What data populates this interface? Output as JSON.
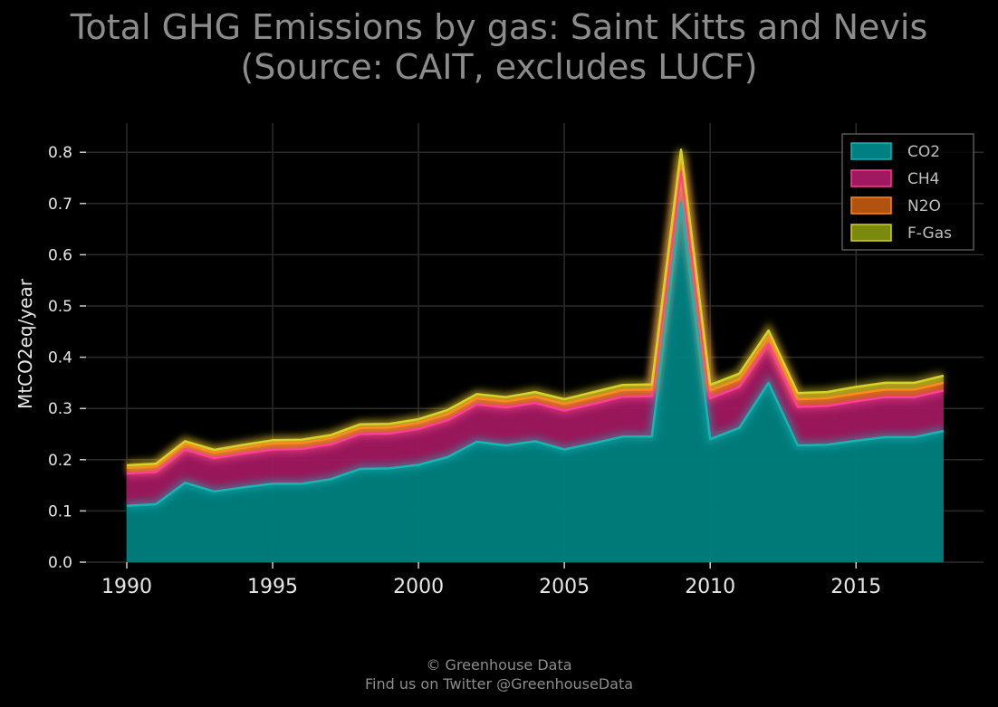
{
  "header": {
    "title_line1": "Total GHG Emissions by gas: Saint Kitts and Nevis",
    "title_line2": "(Source: CAIT, excludes LUCF)"
  },
  "footer": {
    "line1": "© Greenhouse Data",
    "line2": "Find us on Twitter @GreenhouseData"
  },
  "chart_data": {
    "type": "area",
    "stacked": true,
    "title": "Total GHG Emissions by gas: Saint Kitts and Nevis (Source: CAIT, excludes LUCF)",
    "xlabel": "",
    "ylabel": "MtCO2eq/year",
    "xlim": [
      1989.4,
      2019.4
    ],
    "ylim": [
      0,
      0.86
    ],
    "xticks": [
      1990,
      1995,
      2000,
      2005,
      2010,
      2015
    ],
    "yticks": [
      0.0,
      0.1,
      0.2,
      0.3,
      0.4,
      0.5,
      0.6,
      0.7,
      0.8
    ],
    "ytick_labels": [
      "0.0",
      "0.1",
      "0.2",
      "0.3",
      "0.4",
      "0.5",
      "0.6",
      "0.7",
      "0.8"
    ],
    "grid": true,
    "legend_position": "top-right",
    "x": [
      1990,
      1991,
      1992,
      1993,
      1994,
      1995,
      1996,
      1997,
      1998,
      1999,
      2000,
      2001,
      2002,
      2003,
      2004,
      2005,
      2006,
      2007,
      2008,
      2009,
      2010,
      2011,
      2012,
      2013,
      2014,
      2015,
      2016,
      2017,
      2018
    ],
    "series": [
      {
        "name": "CO2",
        "color": "#008080",
        "line_color": "#18b4b4",
        "values": [
          0.11,
          0.113,
          0.155,
          0.138,
          0.146,
          0.153,
          0.153,
          0.162,
          0.182,
          0.183,
          0.19,
          0.205,
          0.235,
          0.228,
          0.236,
          0.22,
          0.232,
          0.245,
          0.245,
          0.703,
          0.24,
          0.262,
          0.35,
          0.228,
          0.229,
          0.237,
          0.244,
          0.244,
          0.256
        ]
      },
      {
        "name": "CH4",
        "color": "#a0185f",
        "line_color": "#ff3d9a",
        "values": [
          0.063,
          0.063,
          0.065,
          0.065,
          0.066,
          0.067,
          0.068,
          0.068,
          0.068,
          0.068,
          0.07,
          0.072,
          0.073,
          0.074,
          0.075,
          0.076,
          0.077,
          0.078,
          0.079,
          0.06,
          0.08,
          0.08,
          0.075,
          0.075,
          0.076,
          0.077,
          0.078,
          0.078,
          0.079
        ]
      },
      {
        "name": "N2O",
        "color": "#b2520e",
        "line_color": "#ff8a1e",
        "values": [
          0.011,
          0.011,
          0.011,
          0.011,
          0.011,
          0.012,
          0.012,
          0.012,
          0.012,
          0.012,
          0.012,
          0.012,
          0.012,
          0.012,
          0.012,
          0.013,
          0.013,
          0.013,
          0.013,
          0.03,
          0.015,
          0.015,
          0.015,
          0.015,
          0.015,
          0.015,
          0.015,
          0.015,
          0.015
        ]
      },
      {
        "name": "F-Gas",
        "color": "#7a8a0c",
        "line_color": "#d6d22a",
        "values": [
          0.005,
          0.005,
          0.005,
          0.005,
          0.006,
          0.006,
          0.006,
          0.006,
          0.007,
          0.007,
          0.007,
          0.008,
          0.008,
          0.008,
          0.009,
          0.009,
          0.01,
          0.01,
          0.01,
          0.012,
          0.011,
          0.011,
          0.012,
          0.012,
          0.012,
          0.013,
          0.013,
          0.013,
          0.014
        ]
      }
    ]
  }
}
